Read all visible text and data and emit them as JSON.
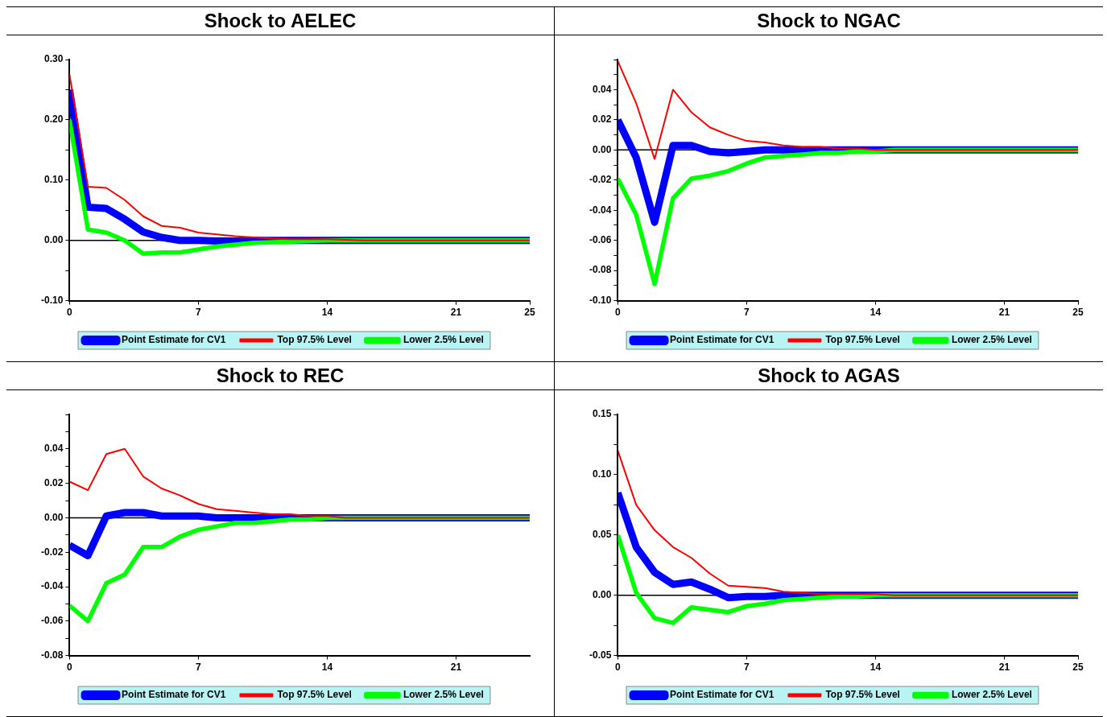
{
  "chart_data": [
    {
      "type": "line",
      "title": "Shock to AELEC",
      "x": [
        0,
        1,
        2,
        3,
        4,
        5,
        6,
        7,
        8,
        9,
        10,
        11,
        12,
        13,
        14,
        15,
        16,
        17,
        18,
        19,
        20,
        21,
        22,
        23,
        24,
        25
      ],
      "xlim": [
        0,
        25
      ],
      "xticks": [
        0,
        7,
        14,
        21,
        25
      ],
      "ylim": [
        -0.1,
        0.3
      ],
      "yticks": [
        {
          "value": -0.1,
          "label": "-0.10"
        },
        {
          "value": -0.05,
          "label": null
        },
        {
          "value": 0,
          "label": "0.00"
        },
        {
          "value": 0.05,
          "label": null
        },
        {
          "value": 0.1,
          "label": "0.10"
        },
        {
          "value": 0.15,
          "label": null
        },
        {
          "value": 0.2,
          "label": "0.20"
        },
        {
          "value": 0.25,
          "label": null
        },
        {
          "value": 0.3,
          "label": "0.30"
        }
      ],
      "grid": false,
      "legend": "bottom",
      "marker": "none",
      "ref_lines": [
        {
          "axis": "y",
          "value": 0,
          "color": "#000000"
        }
      ],
      "series": [
        {
          "name": "Point Estimate for CV1",
          "color": "#0000ff",
          "values": [
            0.25,
            0.055,
            0.053,
            0.035,
            0.014,
            0.005,
            0,
            0,
            -0.001,
            -0.001,
            0,
            0,
            0,
            0,
            0,
            0,
            0,
            0,
            0,
            0,
            0,
            0,
            0,
            0,
            0,
            0
          ]
        },
        {
          "name": "Top 97.5% Level",
          "color": "#ff0000",
          "values": [
            0.275,
            0.089,
            0.087,
            0.067,
            0.04,
            0.024,
            0.021,
            0.013,
            0.01,
            0.007,
            0.005,
            0.003,
            0.002,
            0.002,
            0.002,
            0.001,
            0,
            0,
            0,
            0,
            0,
            0,
            0,
            0,
            0,
            0
          ]
        },
        {
          "name": "Lower 2.5% Level",
          "color": "#00ff00",
          "values": [
            0.2,
            0.018,
            0.013,
            0,
            -0.022,
            -0.02,
            -0.02,
            -0.015,
            -0.01,
            -0.007,
            -0.004,
            -0.003,
            -0.002,
            -0.001,
            0,
            0,
            0,
            0,
            0,
            0,
            0,
            0,
            0,
            0,
            0,
            0
          ]
        }
      ]
    },
    {
      "type": "line",
      "title": "Shock to NGAC",
      "x": [
        0,
        1,
        2,
        3,
        4,
        5,
        6,
        7,
        8,
        9,
        10,
        11,
        12,
        13,
        14,
        15,
        16,
        17,
        18,
        19,
        20,
        21,
        22,
        23,
        24,
        25
      ],
      "xlim": [
        0,
        25
      ],
      "xticks": [
        0,
        7,
        14,
        21,
        25
      ],
      "ylim": [
        -0.1,
        0.06
      ],
      "yticks": [
        {
          "value": -0.1,
          "label": "-0.10"
        },
        {
          "value": -0.09,
          "label": null
        },
        {
          "value": -0.08,
          "label": "-0.08"
        },
        {
          "value": -0.07,
          "label": null
        },
        {
          "value": -0.06,
          "label": "-0.06"
        },
        {
          "value": -0.05,
          "label": null
        },
        {
          "value": -0.04,
          "label": "-0.04"
        },
        {
          "value": -0.03,
          "label": null
        },
        {
          "value": -0.02,
          "label": "-0.02"
        },
        {
          "value": -0.01,
          "label": null
        },
        {
          "value": 0,
          "label": "0.00"
        },
        {
          "value": 0.01,
          "label": null
        },
        {
          "value": 0.02,
          "label": "0.02"
        },
        {
          "value": 0.03,
          "label": null
        },
        {
          "value": 0.04,
          "label": "0.04"
        },
        {
          "value": 0.05,
          "label": null
        },
        {
          "value": 0.06,
          "label": null
        }
      ],
      "grid": false,
      "legend": "bottom",
      "marker": "none",
      "ref_lines": [
        {
          "axis": "y",
          "value": 0,
          "color": "#000000"
        }
      ],
      "series": [
        {
          "name": "Point Estimate for CV1",
          "color": "#0000ff",
          "values": [
            0.02,
            -0.005,
            -0.048,
            0.003,
            0.003,
            -0.001,
            -0.002,
            -0.001,
            0,
            0,
            0,
            0,
            0,
            0,
            0,
            0,
            0,
            0,
            0,
            0,
            0,
            0,
            0,
            0,
            0,
            0
          ]
        },
        {
          "name": "Top 97.5% Level",
          "color": "#ff0000",
          "values": [
            0.059,
            0.031,
            -0.006,
            0.04,
            0.025,
            0.015,
            0.01,
            0.006,
            0.005,
            0.003,
            0.002,
            0.002,
            0.001,
            0.001,
            0,
            0,
            0,
            0,
            0,
            0,
            0,
            0,
            0,
            0,
            0,
            0
          ]
        },
        {
          "name": "Lower 2.5% Level",
          "color": "#00ff00",
          "values": [
            -0.019,
            -0.043,
            -0.089,
            -0.032,
            -0.019,
            -0.017,
            -0.014,
            -0.009,
            -0.005,
            -0.004,
            -0.003,
            -0.002,
            -0.002,
            -0.001,
            -0.001,
            0,
            0,
            0,
            0,
            0,
            0,
            0,
            0,
            0,
            0,
            0
          ]
        }
      ]
    },
    {
      "type": "line",
      "title": "Shock to REC",
      "x": [
        0,
        1,
        2,
        3,
        4,
        5,
        6,
        7,
        8,
        9,
        10,
        11,
        12,
        13,
        14,
        15,
        16,
        17,
        18,
        19,
        20,
        21,
        22,
        23,
        24,
        25
      ],
      "xlim": [
        0,
        25
      ],
      "xticks": [
        0,
        7,
        14,
        21
      ],
      "ylim": [
        -0.08,
        0.06
      ],
      "yticks": [
        {
          "value": -0.08,
          "label": "-0.08"
        },
        {
          "value": -0.07,
          "label": null
        },
        {
          "value": -0.06,
          "label": "-0.06"
        },
        {
          "value": -0.05,
          "label": null
        },
        {
          "value": -0.04,
          "label": "-0.04"
        },
        {
          "value": -0.03,
          "label": null
        },
        {
          "value": -0.02,
          "label": "-0.02"
        },
        {
          "value": -0.01,
          "label": null
        },
        {
          "value": 0,
          "label": "0.00"
        },
        {
          "value": 0.01,
          "label": null
        },
        {
          "value": 0.02,
          "label": "0.02"
        },
        {
          "value": 0.03,
          "label": null
        },
        {
          "value": 0.04,
          "label": "0.04"
        },
        {
          "value": 0.05,
          "label": null
        },
        {
          "value": 0.06,
          "label": null
        }
      ],
      "grid": false,
      "legend": "bottom",
      "marker": "none",
      "ref_lines": [
        {
          "axis": "y",
          "value": 0,
          "color": "#000000"
        }
      ],
      "series": [
        {
          "name": "Point Estimate for CV1",
          "color": "#0000ff",
          "values": [
            -0.016,
            -0.022,
            0.001,
            0.003,
            0.003,
            0.001,
            0.001,
            0.001,
            0,
            0,
            0,
            0,
            0,
            0,
            0,
            0,
            0,
            0,
            0,
            0,
            0,
            0,
            0,
            0,
            0,
            0
          ]
        },
        {
          "name": "Top 97.5% Level",
          "color": "#ff0000",
          "values": [
            0.021,
            0.016,
            0.037,
            0.04,
            0.024,
            0.017,
            0.013,
            0.008,
            0.005,
            0.004,
            0.003,
            0.002,
            0.002,
            0.001,
            0.001,
            0,
            0,
            0,
            0,
            0,
            0,
            0,
            0,
            0,
            0,
            0
          ]
        },
        {
          "name": "Lower 2.5% Level",
          "color": "#00ff00",
          "values": [
            -0.051,
            -0.06,
            -0.038,
            -0.033,
            -0.017,
            -0.017,
            -0.011,
            -0.007,
            -0.005,
            -0.003,
            -0.003,
            -0.002,
            -0.001,
            -0.001,
            0,
            0,
            0,
            0,
            0,
            0,
            0,
            0,
            0,
            0,
            0,
            0
          ]
        }
      ]
    },
    {
      "type": "line",
      "title": "Shock to AGAS",
      "x": [
        0,
        1,
        2,
        3,
        4,
        5,
        6,
        7,
        8,
        9,
        10,
        11,
        12,
        13,
        14,
        15,
        16,
        17,
        18,
        19,
        20,
        21,
        22,
        23,
        24,
        25
      ],
      "xlim": [
        0,
        25
      ],
      "xticks": [
        0,
        7,
        14,
        21,
        25
      ],
      "ylim": [
        -0.05,
        0.15
      ],
      "yticks": [
        {
          "value": -0.05,
          "label": "-0.05"
        },
        {
          "value": -0.025,
          "label": null
        },
        {
          "value": 0,
          "label": "0.00"
        },
        {
          "value": 0.025,
          "label": null
        },
        {
          "value": 0.05,
          "label": "0.05"
        },
        {
          "value": 0.075,
          "label": null
        },
        {
          "value": 0.1,
          "label": "0.10"
        },
        {
          "value": 0.125,
          "label": null
        },
        {
          "value": 0.15,
          "label": "0.15"
        }
      ],
      "grid": false,
      "legend": "bottom",
      "marker": "none",
      "ref_lines": [
        {
          "axis": "y",
          "value": 0,
          "color": "#000000"
        }
      ],
      "series": [
        {
          "name": "Point Estimate for CV1",
          "color": "#0000ff",
          "values": [
            0.085,
            0.04,
            0.019,
            0.009,
            0.011,
            0.005,
            -0.002,
            -0.001,
            -0.001,
            0,
            0,
            0,
            0,
            0,
            0,
            0,
            0,
            0,
            0,
            0,
            0,
            0,
            0,
            0,
            0,
            0
          ]
        },
        {
          "name": "Top 97.5% Level",
          "color": "#ff0000",
          "values": [
            0.12,
            0.075,
            0.054,
            0.04,
            0.031,
            0.018,
            0.008,
            0.007,
            0.006,
            0.003,
            0.002,
            0.001,
            0.001,
            0.001,
            0.001,
            0,
            0,
            0,
            0,
            0,
            0,
            0,
            0,
            0,
            0,
            0
          ]
        },
        {
          "name": "Lower 2.5% Level",
          "color": "#00ff00",
          "values": [
            0.05,
            0.002,
            -0.019,
            -0.023,
            -0.01,
            -0.012,
            -0.014,
            -0.009,
            -0.007,
            -0.004,
            -0.003,
            -0.002,
            -0.001,
            -0.001,
            0,
            0,
            0,
            0,
            0,
            0,
            0,
            0,
            0,
            0,
            0,
            0
          ]
        }
      ]
    }
  ]
}
